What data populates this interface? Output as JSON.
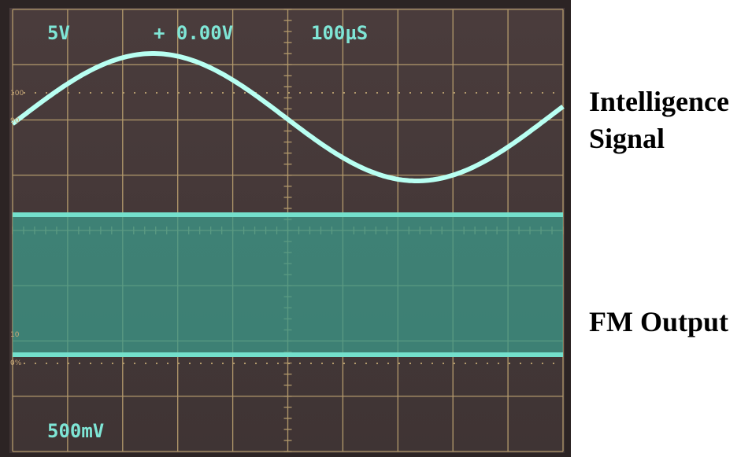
{
  "screen": {
    "readouts": {
      "volts_div": "5V",
      "offset": "+ 0.00V",
      "timebase": "100µS",
      "channel2": "500mV"
    },
    "graticule_marks": [
      "100",
      "90",
      "10",
      "0%"
    ]
  },
  "labels": {
    "intelligence": [
      "Intelligence",
      "Signal"
    ],
    "fm": "FM Output"
  }
}
